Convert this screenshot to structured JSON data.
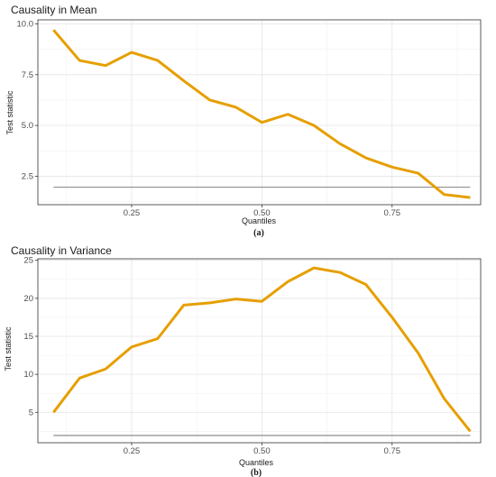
{
  "colors": {
    "series": "#E69F00",
    "reference": "#808080"
  },
  "chart_data": [
    {
      "type": "line",
      "title": "Causality in Mean",
      "xlabel": "Quantiles",
      "ylabel": "Test statistic",
      "caption": "(a)",
      "xlim": [
        0.07,
        0.92
      ],
      "ylim": [
        1.1,
        10.2
      ],
      "xticks": [
        "0.25",
        "0.50",
        "0.75"
      ],
      "yticks": [
        "2.5",
        "5.0",
        "7.5",
        "10.0"
      ],
      "grid": true,
      "x": [
        0.1,
        0.15,
        0.2,
        0.25,
        0.3,
        0.35,
        0.4,
        0.45,
        0.5,
        0.55,
        0.6,
        0.65,
        0.7,
        0.75,
        0.8,
        0.85,
        0.9
      ],
      "series": [
        {
          "values": [
            9.7,
            8.2,
            7.95,
            8.6,
            8.2,
            7.2,
            6.25,
            5.9,
            5.15,
            5.55,
            5.0,
            4.1,
            3.4,
            2.95,
            2.65,
            1.6,
            1.45
          ]
        }
      ],
      "reference_line": {
        "y": 1.96,
        "x_range": [
          0.1,
          0.9
        ]
      }
    },
    {
      "type": "line",
      "title": "Causality in Variance",
      "xlabel": "Quantiles",
      "ylabel": "Test statistic",
      "caption": "(b)",
      "xlim": [
        0.07,
        0.92
      ],
      "ylim": [
        1.0,
        25.2
      ],
      "xticks": [
        "0.25",
        "0.50",
        "0.75"
      ],
      "yticks": [
        "5",
        "10",
        "15",
        "20",
        "25"
      ],
      "grid": true,
      "x": [
        0.1,
        0.15,
        0.2,
        0.25,
        0.3,
        0.35,
        0.4,
        0.45,
        0.5,
        0.55,
        0.6,
        0.65,
        0.7,
        0.75,
        0.8,
        0.85,
        0.9
      ],
      "series": [
        {
          "values": [
            5.0,
            9.5,
            10.7,
            13.6,
            14.7,
            19.1,
            19.4,
            19.9,
            19.6,
            22.2,
            24.0,
            23.4,
            21.8,
            17.5,
            12.8,
            6.8,
            2.5
          ]
        }
      ],
      "reference_line": {
        "y": 1.96,
        "x_range": [
          0.1,
          0.9
        ]
      }
    }
  ]
}
